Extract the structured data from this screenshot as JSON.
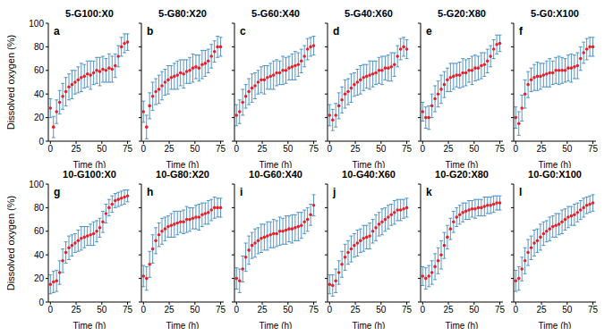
{
  "chart_data": [
    {
      "type": "scatter",
      "title": "5-G100:X0",
      "annotation": "a",
      "xlabel": "Time (h)",
      "ylabel": "Dissolved oxygen (%)",
      "xlim": [
        -2,
        78
      ],
      "xticks": [
        0,
        25,
        50,
        75
      ],
      "ylim": [
        0,
        100
      ],
      "yticks": [
        0,
        20,
        40,
        60,
        80,
        100
      ],
      "color": "#e8202a",
      "marker": "o",
      "x": [
        0,
        3,
        6,
        9,
        12,
        15,
        18,
        21,
        24,
        27,
        30,
        33,
        36,
        39,
        42,
        45,
        48,
        51,
        54,
        57,
        60,
        63,
        66,
        69,
        72,
        75
      ],
      "values": [
        28,
        12,
        25,
        33,
        38,
        42,
        46,
        48,
        50,
        52,
        54,
        55,
        57,
        56,
        58,
        60,
        59,
        61,
        60,
        62,
        61,
        64,
        72,
        80,
        83,
        84
      ],
      "error": [
        8,
        9,
        10,
        10,
        11,
        12,
        11,
        12,
        10,
        11,
        12,
        10,
        11,
        12,
        10,
        11,
        12,
        11,
        10,
        12,
        11,
        10,
        9,
        8,
        8,
        7
      ]
    },
    {
      "type": "scatter",
      "title": "5-G80:X20",
      "annotation": "b",
      "xlabel": "Time (h)",
      "tick_labels": "x",
      "xlim": [
        -2,
        78
      ],
      "xticks": [
        0,
        25,
        50,
        75
      ],
      "ylim": [
        0,
        100
      ],
      "yticks": [
        0,
        20,
        40,
        60,
        80,
        100
      ],
      "color": "#e8202a",
      "marker": "o",
      "x": [
        0,
        3,
        6,
        9,
        12,
        15,
        18,
        21,
        24,
        27,
        30,
        33,
        36,
        39,
        42,
        45,
        48,
        51,
        54,
        57,
        60,
        63,
        66,
        69,
        72,
        75
      ],
      "values": [
        25,
        12,
        30,
        38,
        42,
        44,
        47,
        50,
        52,
        54,
        55,
        56,
        58,
        57,
        59,
        60,
        62,
        63,
        62,
        65,
        66,
        68,
        72,
        76,
        80,
        80
      ],
      "error": [
        9,
        10,
        11,
        12,
        11,
        12,
        12,
        11,
        12,
        10,
        11,
        12,
        11,
        12,
        10,
        11,
        12,
        10,
        11,
        12,
        11,
        10,
        10,
        9,
        9,
        8
      ]
    },
    {
      "type": "scatter",
      "title": "5-G60:X40",
      "annotation": "c",
      "xlabel": "Time (h)",
      "tick_labels": "x",
      "xlim": [
        -2,
        78
      ],
      "xticks": [
        0,
        25,
        50,
        75
      ],
      "ylim": [
        0,
        100
      ],
      "yticks": [
        0,
        20,
        40,
        60,
        80,
        100
      ],
      "color": "#e8202a",
      "marker": "o",
      "x": [
        0,
        3,
        6,
        9,
        12,
        15,
        18,
        21,
        24,
        27,
        30,
        33,
        36,
        39,
        42,
        45,
        48,
        51,
        54,
        57,
        60,
        63,
        66,
        69,
        72,
        75
      ],
      "values": [
        22,
        25,
        33,
        38,
        42,
        45,
        47,
        50,
        52,
        52,
        54,
        55,
        56,
        58,
        58,
        60,
        60,
        62,
        63,
        64,
        65,
        68,
        72,
        78,
        80,
        81
      ],
      "error": [
        9,
        10,
        11,
        10,
        11,
        12,
        11,
        10,
        11,
        12,
        10,
        11,
        12,
        11,
        10,
        12,
        11,
        10,
        11,
        12,
        10,
        10,
        9,
        9,
        8,
        8
      ]
    },
    {
      "type": "scatter",
      "title": "5-G40:X60",
      "annotation": "d",
      "xlabel": "Time (h)",
      "tick_labels": "x",
      "xlim": [
        -2,
        78
      ],
      "xticks": [
        0,
        25,
        50,
        75
      ],
      "ylim": [
        0,
        100
      ],
      "yticks": [
        0,
        20,
        40,
        60,
        80,
        100
      ],
      "color": "#e8202a",
      "marker": "o",
      "x": [
        0,
        3,
        6,
        9,
        12,
        15,
        18,
        21,
        24,
        27,
        30,
        33,
        36,
        39,
        42,
        45,
        48,
        51,
        54,
        57,
        60,
        63,
        66,
        69,
        72,
        75
      ],
      "values": [
        22,
        18,
        22,
        30,
        35,
        40,
        42,
        45,
        48,
        50,
        52,
        54,
        55,
        56,
        57,
        58,
        60,
        60,
        62,
        62,
        63,
        65,
        72,
        78,
        80,
        78
      ],
      "error": [
        9,
        9,
        10,
        11,
        11,
        12,
        11,
        12,
        10,
        11,
        12,
        11,
        10,
        12,
        11,
        10,
        11,
        12,
        10,
        11,
        12,
        10,
        9,
        9,
        8,
        8
      ]
    },
    {
      "type": "scatter",
      "title": "5-G20:X80",
      "annotation": "e",
      "xlabel": "Time (h)",
      "tick_labels": "x",
      "xlim": [
        -2,
        78
      ],
      "xticks": [
        0,
        25,
        50,
        75
      ],
      "ylim": [
        0,
        100
      ],
      "yticks": [
        0,
        20,
        40,
        60,
        80,
        100
      ],
      "color": "#e8202a",
      "marker": "o",
      "x": [
        0,
        3,
        6,
        9,
        12,
        15,
        18,
        21,
        24,
        27,
        30,
        33,
        36,
        39,
        42,
        45,
        48,
        51,
        54,
        57,
        60,
        63,
        66,
        69,
        72,
        75
      ],
      "values": [
        25,
        20,
        20,
        30,
        36,
        40,
        44,
        48,
        52,
        54,
        55,
        56,
        56,
        58,
        58,
        60,
        60,
        62,
        62,
        64,
        65,
        68,
        72,
        78,
        82,
        83
      ],
      "error": [
        8,
        9,
        10,
        10,
        11,
        11,
        12,
        11,
        10,
        12,
        11,
        10,
        11,
        12,
        11,
        10,
        12,
        11,
        10,
        11,
        10,
        10,
        9,
        8,
        8,
        7
      ]
    },
    {
      "type": "scatter",
      "title": "5-G0:X100",
      "annotation": "f",
      "xlabel": "Time (h)",
      "tick_labels": "x",
      "xlim": [
        -2,
        78
      ],
      "xticks": [
        0,
        25,
        50,
        75
      ],
      "ylim": [
        0,
        100
      ],
      "yticks": [
        0,
        20,
        40,
        60,
        80,
        100
      ],
      "color": "#e8202a",
      "marker": "o",
      "x": [
        0,
        3,
        6,
        9,
        12,
        15,
        18,
        21,
        24,
        27,
        30,
        33,
        36,
        39,
        42,
        45,
        48,
        51,
        54,
        57,
        60,
        63,
        66,
        69,
        72,
        75
      ],
      "values": [
        20,
        15,
        28,
        40,
        48,
        52,
        54,
        55,
        55,
        56,
        57,
        58,
        58,
        60,
        60,
        60,
        60,
        62,
        62,
        63,
        64,
        70,
        75,
        78,
        80,
        80
      ],
      "error": [
        9,
        10,
        11,
        12,
        11,
        10,
        11,
        12,
        11,
        10,
        11,
        12,
        10,
        11,
        12,
        11,
        10,
        11,
        12,
        10,
        11,
        10,
        9,
        9,
        8,
        8
      ]
    },
    {
      "type": "scatter",
      "title": "10-G100:X0",
      "annotation": "g",
      "xlabel": "Time (h)",
      "ylabel": "Dissolved oxygen (%)",
      "xlim": [
        -2,
        78
      ],
      "xticks": [
        0,
        25,
        50,
        75
      ],
      "ylim": [
        0,
        100
      ],
      "yticks": [
        0,
        20,
        40,
        60,
        80,
        100
      ],
      "color": "#e8202a",
      "marker": "o",
      "x": [
        0,
        3,
        6,
        9,
        12,
        15,
        18,
        21,
        24,
        27,
        30,
        33,
        36,
        39,
        42,
        45,
        48,
        51,
        54,
        57,
        60,
        63,
        66,
        69,
        72,
        75
      ],
      "values": [
        15,
        17,
        18,
        25,
        35,
        42,
        46,
        48,
        50,
        52,
        54,
        55,
        56,
        57,
        58,
        60,
        63,
        68,
        75,
        80,
        83,
        86,
        87,
        88,
        89,
        90
      ],
      "error": [
        8,
        9,
        9,
        10,
        10,
        9,
        10,
        9,
        8,
        9,
        10,
        9,
        8,
        9,
        10,
        9,
        8,
        9,
        8,
        7,
        7,
        6,
        6,
        6,
        6,
        5
      ]
    },
    {
      "type": "scatter",
      "title": "10-G80:X20",
      "annotation": "h",
      "xlabel": "Time (h)",
      "tick_labels": "x",
      "xlim": [
        -2,
        78
      ],
      "xticks": [
        0,
        25,
        50,
        75
      ],
      "ylim": [
        0,
        100
      ],
      "yticks": [
        0,
        20,
        40,
        60,
        80,
        100
      ],
      "color": "#e8202a",
      "marker": "o",
      "x": [
        0,
        3,
        6,
        9,
        12,
        15,
        18,
        21,
        24,
        27,
        30,
        33,
        36,
        39,
        42,
        45,
        48,
        51,
        54,
        57,
        60,
        63,
        66,
        69,
        72,
        75
      ],
      "values": [
        22,
        20,
        32,
        45,
        52,
        57,
        60,
        62,
        64,
        65,
        66,
        67,
        68,
        68,
        70,
        70,
        71,
        72,
        72,
        74,
        75,
        76,
        78,
        80,
        80,
        80
      ],
      "error": [
        9,
        10,
        11,
        12,
        11,
        10,
        11,
        10,
        9,
        10,
        11,
        10,
        9,
        10,
        11,
        10,
        9,
        10,
        11,
        10,
        9,
        10,
        9,
        9,
        8,
        8
      ]
    },
    {
      "type": "scatter",
      "title": "10-G60:X40",
      "annotation": "i",
      "xlabel": "Time (h)",
      "tick_labels": "x",
      "xlim": [
        -2,
        78
      ],
      "xticks": [
        0,
        25,
        50,
        75
      ],
      "ylim": [
        0,
        100
      ],
      "yticks": [
        0,
        20,
        40,
        60,
        80,
        100
      ],
      "color": "#e8202a",
      "marker": "o",
      "x": [
        0,
        3,
        6,
        9,
        12,
        15,
        18,
        21,
        24,
        27,
        30,
        33,
        36,
        39,
        42,
        45,
        48,
        51,
        54,
        57,
        60,
        63,
        66,
        69,
        72,
        75
      ],
      "values": [
        20,
        18,
        28,
        38,
        44,
        48,
        50,
        52,
        54,
        55,
        56,
        57,
        58,
        58,
        60,
        60,
        61,
        62,
        62,
        63,
        64,
        65,
        68,
        70,
        74,
        82
      ],
      "error": [
        9,
        10,
        11,
        12,
        12,
        11,
        12,
        11,
        12,
        11,
        12,
        11,
        12,
        11,
        12,
        11,
        12,
        11,
        12,
        11,
        12,
        11,
        10,
        10,
        9,
        9
      ]
    },
    {
      "type": "scatter",
      "title": "10-G40:X60",
      "annotation": "j",
      "xlabel": "Time (h)",
      "tick_labels": "x",
      "xlim": [
        -2,
        78
      ],
      "xticks": [
        0,
        25,
        50,
        75
      ],
      "ylim": [
        0,
        100
      ],
      "yticks": [
        0,
        20,
        40,
        60,
        80,
        100
      ],
      "color": "#e8202a",
      "marker": "o",
      "x": [
        0,
        3,
        6,
        9,
        12,
        15,
        18,
        21,
        24,
        27,
        30,
        33,
        36,
        39,
        42,
        45,
        48,
        51,
        54,
        57,
        60,
        63,
        66,
        69,
        72,
        75
      ],
      "values": [
        15,
        14,
        18,
        25,
        32,
        38,
        42,
        45,
        48,
        50,
        52,
        54,
        55,
        56,
        60,
        63,
        66,
        68,
        70,
        72,
        74,
        76,
        78,
        78,
        79,
        80
      ],
      "error": [
        8,
        9,
        10,
        10,
        11,
        11,
        10,
        11,
        10,
        11,
        10,
        11,
        10,
        11,
        10,
        11,
        10,
        11,
        10,
        10,
        9,
        10,
        9,
        9,
        8,
        8
      ]
    },
    {
      "type": "scatter",
      "title": "10-G20:X80",
      "annotation": "k",
      "xlabel": "Time (h)",
      "tick_labels": "x",
      "xlim": [
        -2,
        78
      ],
      "xticks": [
        0,
        25,
        50,
        75
      ],
      "ylim": [
        0,
        100
      ],
      "yticks": [
        0,
        20,
        40,
        60,
        80,
        100
      ],
      "color": "#e8202a",
      "marker": "o",
      "x": [
        0,
        3,
        6,
        9,
        12,
        15,
        18,
        21,
        24,
        27,
        30,
        33,
        36,
        39,
        42,
        45,
        48,
        51,
        54,
        57,
        60,
        63,
        66,
        69,
        72,
        75
      ],
      "values": [
        22,
        20,
        22,
        25,
        30,
        35,
        40,
        48,
        55,
        62,
        68,
        72,
        74,
        76,
        77,
        78,
        79,
        79,
        80,
        80,
        81,
        82,
        82,
        83,
        84,
        84
      ],
      "error": [
        8,
        9,
        9,
        10,
        11,
        11,
        12,
        11,
        10,
        9,
        9,
        8,
        8,
        8,
        7,
        8,
        7,
        8,
        7,
        7,
        8,
        7,
        7,
        7,
        6,
        6
      ]
    },
    {
      "type": "scatter",
      "title": "10-G0:X100",
      "annotation": "l",
      "xlabel": "Time (h)",
      "tick_labels": "x",
      "xlim": [
        -2,
        78
      ],
      "xticks": [
        0,
        25,
        50,
        75
      ],
      "ylim": [
        0,
        100
      ],
      "yticks": [
        0,
        20,
        40,
        60,
        80,
        100
      ],
      "color": "#e8202a",
      "marker": "o",
      "x": [
        0,
        3,
        6,
        9,
        12,
        15,
        18,
        21,
        24,
        27,
        30,
        33,
        36,
        39,
        42,
        45,
        48,
        51,
        54,
        57,
        60,
        63,
        66,
        69,
        72,
        75
      ],
      "values": [
        18,
        20,
        28,
        35,
        42,
        46,
        50,
        52,
        55,
        58,
        60,
        62,
        64,
        65,
        66,
        68,
        70,
        72,
        73,
        74,
        76,
        78,
        80,
        82,
        83,
        84
      ],
      "error": [
        9,
        10,
        10,
        11,
        11,
        10,
        11,
        10,
        11,
        10,
        9,
        10,
        9,
        10,
        9,
        10,
        9,
        9,
        8,
        9,
        8,
        8,
        8,
        7,
        7,
        7
      ]
    }
  ]
}
